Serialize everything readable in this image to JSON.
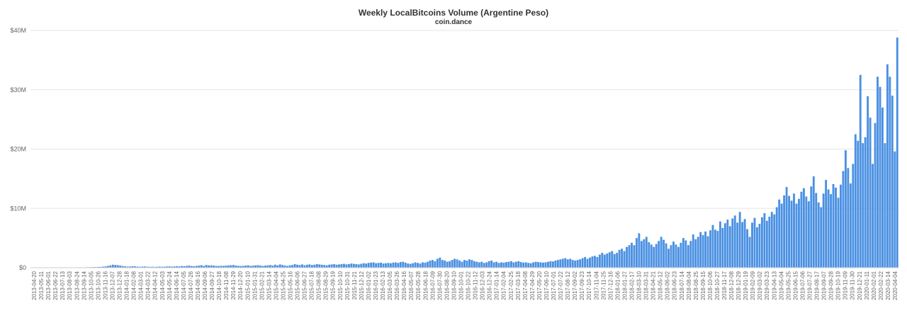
{
  "chart_data": {
    "type": "bar",
    "title": "Weekly LocalBitcoins Volume (Argentine Peso)",
    "subtitle": "coin.dance",
    "xlabel": "",
    "ylabel": "",
    "ylim": [
      0,
      40000000
    ],
    "y_ticks": [
      {
        "value": 0,
        "label": "$0"
      },
      {
        "value": 10000000,
        "label": "$10M"
      },
      {
        "value": 20000000,
        "label": "$20M"
      },
      {
        "value": 30000000,
        "label": "$30M"
      },
      {
        "value": 40000000,
        "label": "$40M"
      }
    ],
    "x_tick_labels": [
      "2013-04-20",
      "2013-05-11",
      "2013-06-01",
      "2013-06-22",
      "2013-07-13",
      "2013-08-03",
      "2013-08-24",
      "2013-09-14",
      "2013-10-05",
      "2013-10-26",
      "2013-11-16",
      "2013-12-07",
      "2013-12-28",
      "2014-01-18",
      "2014-02-08",
      "2014-03-01",
      "2014-03-22",
      "2014-04-12",
      "2014-05-03",
      "2014-05-24",
      "2014-06-14",
      "2014-07-05",
      "2014-07-26",
      "2014-08-16",
      "2014-09-06",
      "2014-09-27",
      "2014-10-18",
      "2014-11-08",
      "2014-11-29",
      "2014-12-20",
      "2015-01-10",
      "2015-01-31",
      "2015-02-21",
      "2015-03-14",
      "2015-04-04",
      "2015-04-25",
      "2015-05-16",
      "2015-06-06",
      "2015-06-27",
      "2015-07-18",
      "2015-08-08",
      "2015-08-29",
      "2015-09-19",
      "2015-10-10",
      "2015-10-31",
      "2015-11-21",
      "2015-12-12",
      "2016-01-02",
      "2016-01-23",
      "2016-02-13",
      "2016-03-05",
      "2016-03-26",
      "2016-04-16",
      "2016-05-07",
      "2016-05-28",
      "2016-06-18",
      "2016-07-09",
      "2016-07-30",
      "2016-08-20",
      "2016-09-10",
      "2016-10-01",
      "2016-10-22",
      "2016-11-12",
      "2016-12-03",
      "2016-12-24",
      "2017-01-14",
      "2017-02-04",
      "2017-02-25",
      "2017-03-18",
      "2017-04-08",
      "2017-04-29",
      "2017-05-20",
      "2017-06-10",
      "2017-07-01",
      "2017-07-22",
      "2017-08-12",
      "2017-09-02",
      "2017-09-23",
      "2017-10-14",
      "2017-11-04",
      "2017-11-25",
      "2017-12-16",
      "2018-01-06",
      "2018-01-27",
      "2018-02-17",
      "2018-03-10",
      "2018-03-31",
      "2018-04-21",
      "2018-05-12",
      "2018-06-02",
      "2018-06-23",
      "2018-07-14",
      "2018-08-04",
      "2018-08-25",
      "2018-09-15",
      "2018-10-06",
      "2018-10-27",
      "2018-11-17",
      "2018-12-08",
      "2018-12-29",
      "2019-01-19",
      "2019-02-09",
      "2019-03-02",
      "2019-03-23",
      "2019-04-13",
      "2019-05-04",
      "2019-05-25",
      "2019-06-15",
      "2019-07-06",
      "2019-07-27",
      "2019-08-17",
      "2019-09-07",
      "2019-09-28",
      "2019-10-19",
      "2019-11-09",
      "2019-11-30",
      "2019-12-21",
      "2020-01-11",
      "2020-02-01",
      "2020-02-22",
      "2020-03-14",
      "2020-04-04"
    ],
    "x_start_label": "2013-04-20",
    "x_interval_days": 7,
    "values_millions": [
      0.01,
      0.01,
      0.01,
      0.02,
      0.02,
      0.02,
      0.03,
      0.02,
      0.03,
      0.03,
      0.03,
      0.04,
      0.03,
      0.04,
      0.05,
      0.05,
      0.04,
      0.05,
      0.05,
      0.06,
      0.07,
      0.06,
      0.07,
      0.08,
      0.09,
      0.1,
      0.11,
      0.12,
      0.14,
      0.18,
      0.22,
      0.3,
      0.38,
      0.5,
      0.45,
      0.42,
      0.35,
      0.28,
      0.22,
      0.18,
      0.2,
      0.25,
      0.22,
      0.18,
      0.15,
      0.18,
      0.2,
      0.15,
      0.14,
      0.16,
      0.13,
      0.15,
      0.18,
      0.15,
      0.17,
      0.2,
      0.22,
      0.18,
      0.21,
      0.25,
      0.22,
      0.28,
      0.26,
      0.3,
      0.35,
      0.28,
      0.25,
      0.3,
      0.35,
      0.42,
      0.3,
      0.45,
      0.38,
      0.4,
      0.35,
      0.3,
      0.28,
      0.32,
      0.3,
      0.35,
      0.38,
      0.4,
      0.45,
      0.35,
      0.32,
      0.28,
      0.3,
      0.35,
      0.4,
      0.3,
      0.35,
      0.38,
      0.42,
      0.35,
      0.3,
      0.35,
      0.4,
      0.45,
      0.35,
      0.5,
      0.4,
      0.55,
      0.45,
      0.35,
      0.3,
      0.4,
      0.45,
      0.6,
      0.5,
      0.45,
      0.55,
      0.4,
      0.5,
      0.55,
      0.45,
      0.5,
      0.6,
      0.55,
      0.5,
      0.45,
      0.4,
      0.5,
      0.55,
      0.6,
      0.5,
      0.55,
      0.6,
      0.65,
      0.55,
      0.6,
      0.7,
      0.65,
      0.6,
      0.55,
      0.65,
      0.75,
      0.7,
      0.8,
      0.85,
      0.9,
      0.75,
      0.8,
      0.85,
      0.7,
      0.75,
      0.8,
      0.75,
      0.85,
      0.9,
      0.8,
      0.95,
      1.0,
      0.85,
      0.7,
      0.65,
      0.75,
      0.9,
      0.8,
      0.7,
      0.9,
      0.85,
      1.0,
      1.2,
      1.3,
      1.1,
      1.5,
      1.7,
      1.3,
      1.2,
      1.0,
      1.1,
      1.3,
      1.5,
      1.4,
      1.2,
      1.0,
      1.3,
      1.2,
      1.4,
      1.3,
      1.1,
      1.0,
      0.9,
      1.0,
      0.8,
      0.9,
      1.1,
      1.2,
      0.9,
      1.0,
      0.8,
      0.9,
      0.85,
      0.95,
      1.0,
      1.1,
      0.9,
      1.0,
      1.1,
      0.95,
      0.85,
      0.9,
      0.8,
      0.75,
      0.9,
      1.0,
      0.95,
      0.9,
      0.85,
      0.9,
      1.0,
      1.1,
      1.05,
      1.2,
      1.3,
      1.4,
      1.5,
      1.6,
      1.4,
      1.5,
      1.3,
      1.2,
      1.3,
      1.4,
      1.6,
      1.8,
      1.5,
      1.7,
      1.9,
      2.0,
      1.8,
      2.2,
      2.5,
      2.2,
      2.4,
      2.6,
      2.8,
      2.3,
      2.5,
      3.0,
      3.2,
      2.8,
      3.5,
      3.8,
      4.2,
      3.8,
      5.0,
      5.8,
      4.5,
      4.8,
      5.2,
      4.3,
      3.9,
      3.5,
      4.0,
      4.5,
      5.2,
      4.7,
      4.1,
      3.2,
      3.8,
      4.4,
      3.9,
      3.5,
      4.2,
      5.0,
      4.6,
      3.8,
      4.5,
      5.6,
      4.8,
      5.2,
      6.0,
      5.5,
      6.1,
      5.3,
      6.3,
      7.2,
      6.4,
      6.2,
      7.8,
      6.7,
      7.5,
      8.1,
      7.0,
      8.3,
      8.8,
      7.6,
      9.4,
      7.7,
      8.2,
      6.5,
      5.2,
      7.6,
      8.4,
      6.8,
      7.4,
      8.5,
      9.2,
      7.9,
      8.6,
      9.4,
      9.0,
      10.2,
      11.5,
      10.8,
      12.2,
      13.6,
      12.1,
      11.3,
      12.5,
      10.8,
      11.6,
      12.8,
      13.4,
      12.0,
      11.2,
      13.7,
      15.4,
      12.6,
      11.0,
      10.2,
      12.5,
      14.8,
      13.2,
      12.4,
      14.1,
      13.5,
      11.8,
      14.0,
      16.3,
      19.8,
      16.8,
      14.2,
      17.5,
      22.5,
      21.4,
      32.5,
      21.0,
      22.0,
      28.9,
      25.3,
      17.5,
      24.4,
      32.2,
      30.5,
      27.0,
      21.0,
      34.3,
      32.2,
      29.0,
      19.6,
      38.8
    ]
  }
}
